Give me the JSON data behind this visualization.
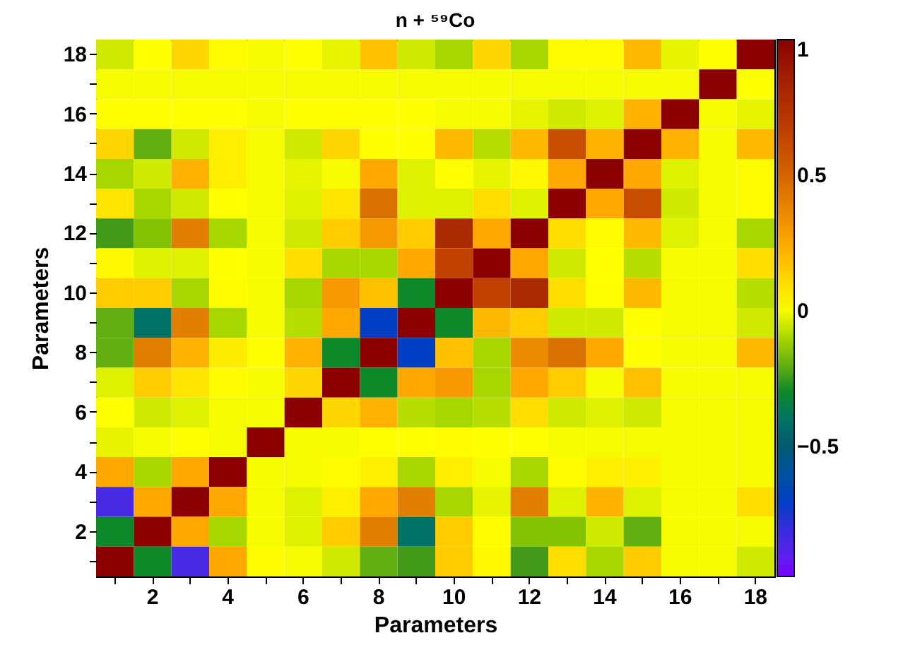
{
  "chart_data": {
    "type": "heatmap",
    "title": "n + ⁵⁹Co",
    "xlabel": "Parameters",
    "ylabel": "Parameters",
    "categories": [
      null,
      "2",
      null,
      "4",
      null,
      "6",
      null,
      "8",
      null,
      "10",
      null,
      "12",
      null,
      "14",
      null,
      "16",
      null,
      "18"
    ],
    "y_categories": [
      "18",
      null,
      "16",
      null,
      "14",
      null,
      "12",
      null,
      "10",
      null,
      "8",
      null,
      "6",
      null,
      "4",
      null,
      "2",
      null
    ],
    "cells": [
      [
        -0.05,
        0.01,
        0.12,
        0.02,
        0,
        0.01,
        -0.02,
        0.18,
        -0.05,
        -0.1,
        0.12,
        -0.1,
        0.02,
        0.02,
        0.2,
        -0.02,
        0.01,
        1
      ],
      [
        0,
        0,
        0,
        0,
        0,
        0,
        0,
        0,
        0,
        0,
        0,
        0,
        0,
        0,
        0,
        0,
        1,
        0.01
      ],
      [
        0.01,
        0.01,
        0.01,
        0.01,
        0,
        0.01,
        0.01,
        0.01,
        0.01,
        0,
        0,
        -0.02,
        -0.05,
        -0.03,
        0.22,
        1,
        0,
        -0.02
      ],
      [
        0.12,
        -0.2,
        -0.05,
        0.05,
        0,
        -0.05,
        0.12,
        0.01,
        0.01,
        0.2,
        -0.08,
        0.2,
        0.6,
        0.22,
        1,
        0.22,
        0,
        0.2
      ],
      [
        -0.1,
        -0.05,
        0.22,
        0.05,
        0,
        -0.02,
        0,
        0.25,
        -0.03,
        0.01,
        -0.02,
        0.03,
        0.25,
        1,
        0.25,
        -0.03,
        0,
        0.02
      ],
      [
        0.08,
        -0.1,
        -0.05,
        0.01,
        0,
        -0.03,
        0.08,
        0.45,
        -0.03,
        -0.03,
        0.1,
        -0.03,
        1,
        0.25,
        0.6,
        -0.05,
        0,
        0.02
      ],
      [
        -0.25,
        -0.15,
        0.4,
        -0.1,
        0,
        -0.05,
        0.15,
        0.3,
        0.15,
        0.8,
        0.25,
        1,
        0.1,
        0.02,
        0.2,
        -0.03,
        0,
        -0.1
      ],
      [
        0.03,
        -0.03,
        -0.03,
        0.01,
        0,
        0.1,
        -0.1,
        -0.1,
        0.25,
        0.65,
        1,
        0.25,
        -0.05,
        0.01,
        -0.08,
        0,
        0,
        0.1
      ],
      [
        0.15,
        0.15,
        -0.1,
        0.02,
        0,
        -0.1,
        0.3,
        0.18,
        -0.3,
        1,
        0.65,
        0.8,
        0.1,
        0.01,
        0.2,
        0,
        0,
        -0.08
      ],
      [
        -0.2,
        -0.4,
        0.4,
        -0.1,
        0,
        -0.08,
        0.25,
        -0.7,
        1,
        -0.3,
        0.2,
        0.15,
        -0.05,
        -0.05,
        0.01,
        0,
        0,
        -0.05
      ],
      [
        -0.2,
        0.4,
        0.22,
        0.06,
        0.01,
        0.22,
        -0.3,
        1,
        -0.7,
        0.18,
        -0.1,
        0.35,
        0.45,
        0.25,
        0.01,
        0,
        0,
        0.2
      ],
      [
        -0.03,
        0.15,
        0.08,
        0.02,
        0,
        0.12,
        1,
        -0.3,
        0.25,
        0.3,
        -0.1,
        0.25,
        0.15,
        0,
        0.18,
        0,
        0,
        0
      ],
      [
        0.01,
        -0.05,
        -0.03,
        0,
        0,
        1,
        0.12,
        0.22,
        -0.08,
        -0.1,
        -0.08,
        0.1,
        -0.05,
        -0.03,
        -0.05,
        0,
        0,
        0
      ],
      [
        -0.02,
        0,
        0.01,
        0,
        1,
        0,
        0,
        0.01,
        0.01,
        0.02,
        0.01,
        0.01,
        0,
        0,
        0,
        0,
        0,
        0
      ],
      [
        0.25,
        -0.1,
        0.25,
        1,
        0,
        0,
        0.02,
        0.05,
        -0.1,
        0.05,
        0,
        -0.1,
        0.02,
        0.05,
        0.05,
        0,
        0,
        0
      ],
      [
        -0.85,
        0.25,
        1,
        0.25,
        0,
        -0.03,
        0.05,
        0.25,
        0.4,
        -0.1,
        -0.02,
        0.4,
        -0.03,
        0.22,
        -0.03,
        0,
        0,
        0.1
      ],
      [
        -0.3,
        1,
        0.25,
        -0.1,
        0,
        -0.03,
        0.15,
        0.4,
        -0.4,
        0.15,
        0.02,
        -0.15,
        -0.15,
        -0.05,
        -0.2,
        0,
        0,
        0
      ],
      [
        1,
        -0.3,
        -0.85,
        0.25,
        0.02,
        0,
        -0.05,
        -0.2,
        -0.25,
        0.15,
        0.03,
        -0.25,
        0.1,
        -0.1,
        0.15,
        0,
        0,
        -0.05
      ]
    ],
    "clim": [
      -0.98,
      1
    ],
    "cticks": [
      -0.5,
      0,
      0.5,
      1
    ]
  }
}
